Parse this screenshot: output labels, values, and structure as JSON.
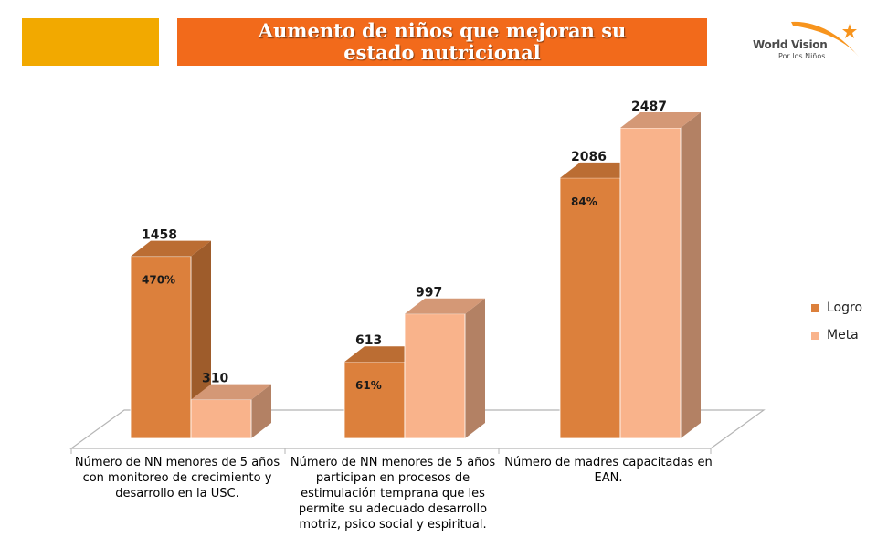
{
  "header": {
    "title": "Aumento de niños que mejoran su estado nutricional",
    "accent_color": "#f2a900",
    "title_bg_color": "#f26a1b"
  },
  "logo": {
    "name": "World Vision",
    "tagline": "Por los Niños",
    "icon": "star-swoosh-icon"
  },
  "chart_data": {
    "type": "bar",
    "categories": [
      "Número de NN menores de 5 años con monitoreo de crecimiento y desarrollo en la USC.",
      "Número de NN menores de 5 años participan en procesos de estimulación temprana que les permite su adecuado desarrollo motriz, psico social y espiritual.",
      "Número de madres capacitadas en EAN."
    ],
    "series": [
      {
        "name": "Logro",
        "values": [
          1458,
          613,
          2086
        ],
        "labels": [
          "1458",
          "613",
          "2086"
        ],
        "color": "#dc803c"
      },
      {
        "name": "Meta",
        "values": [
          310,
          997,
          2487
        ],
        "labels": [
          "310",
          "997",
          "2487"
        ],
        "color": "#f9b38b"
      }
    ],
    "percent_labels": [
      "470%",
      "61%",
      "84%"
    ],
    "ylim": [
      0,
      2487
    ],
    "grid": false,
    "legend_position": "right",
    "style": "3d-column"
  }
}
